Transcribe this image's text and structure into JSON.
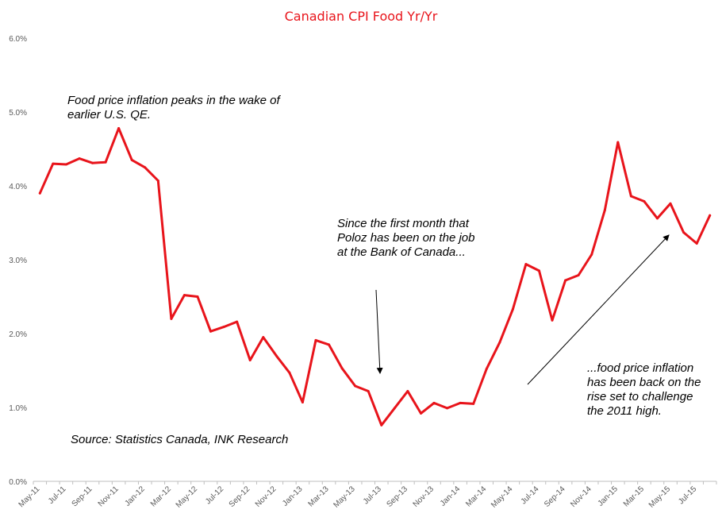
{
  "chart_data": {
    "type": "line",
    "title": "Canadian CPI Food Yr/Yr",
    "xlabel": "",
    "ylabel": "",
    "ylim": [
      0,
      6
    ],
    "yticks": [
      "0.0%",
      "1.0%",
      "2.0%",
      "3.0%",
      "4.0%",
      "5.0%",
      "6.0%"
    ],
    "grid": false,
    "legend": "none",
    "line_color": "#e8141b",
    "x": [
      "May-11",
      "Jun-11",
      "Jul-11",
      "Aug-11",
      "Sep-11",
      "Oct-11",
      "Nov-11",
      "Dec-11",
      "Jan-12",
      "Feb-12",
      "Mar-12",
      "Apr-12",
      "May-12",
      "Jun-12",
      "Jul-12",
      "Aug-12",
      "Sep-12",
      "Oct-12",
      "Nov-12",
      "Dec-12",
      "Jan-13",
      "Feb-13",
      "Mar-13",
      "Apr-13",
      "May-13",
      "Jun-13",
      "Jul-13",
      "Aug-13",
      "Sep-13",
      "Oct-13",
      "Nov-13",
      "Dec-13",
      "Jan-14",
      "Feb-14",
      "Mar-14",
      "Apr-14",
      "May-14",
      "Jun-14",
      "Jul-14",
      "Aug-14",
      "Sep-14",
      "Oct-14",
      "Nov-14",
      "Dec-14",
      "Jan-15",
      "Feb-15",
      "Mar-15",
      "Apr-15",
      "May-15",
      "Jun-15",
      "Jul-15",
      "Aug-15"
    ],
    "xtick_labels": [
      "May-11",
      "Jul-11",
      "Sep-11",
      "Nov-11",
      "Jan-12",
      "Mar-12",
      "May-12",
      "Jul-12",
      "Sep-12",
      "Nov-12",
      "Jan-13",
      "Mar-13",
      "May-13",
      "Jul-13",
      "Sep-13",
      "Nov-13",
      "Jan-14",
      "Mar-14",
      "May-14",
      "Jul-14",
      "Sep-14",
      "Nov-14",
      "Jan-15",
      "Mar-15",
      "May-15",
      "Jul-15"
    ],
    "series": [
      {
        "values": [
          3.9,
          4.3,
          4.29,
          4.37,
          4.31,
          4.32,
          4.78,
          4.35,
          4.25,
          4.07,
          2.2,
          2.52,
          2.5,
          2.03,
          2.09,
          2.16,
          1.64,
          1.95,
          1.7,
          1.47,
          1.07,
          1.91,
          1.85,
          1.53,
          1.29,
          1.22,
          0.76,
          0.99,
          1.22,
          0.92,
          1.06,
          0.99,
          1.06,
          1.05,
          1.52,
          1.88,
          2.33,
          2.94,
          2.85,
          2.18,
          2.72,
          2.79,
          3.07,
          3.67,
          4.59,
          3.86,
          3.79,
          3.56,
          3.76,
          3.37,
          3.22,
          3.6
        ]
      }
    ],
    "annotations": [
      {
        "id": "qe",
        "text": "Food price inflation peaks in the wake  of\nearlier U.S. QE."
      },
      {
        "id": "poloz",
        "text": "Since the first month that\nPoloz has been on the job\nat the Bank of Canada..."
      },
      {
        "id": "rise",
        "text": "...food price inflation\nhas been back on the\nrise set to challenge\nthe 2011 high."
      },
      {
        "id": "source",
        "text": "Source: Statistics Canada, INK Research"
      }
    ]
  }
}
